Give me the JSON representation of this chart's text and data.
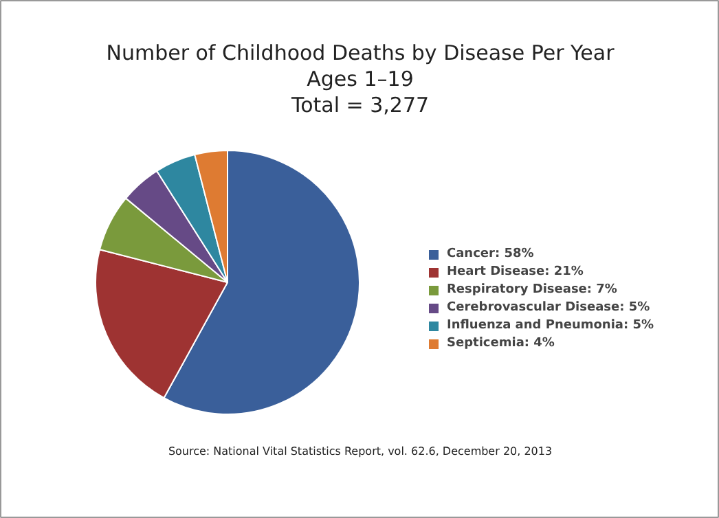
{
  "chart_data": {
    "type": "pie",
    "title": "Number of Childhood Deaths by Disease Per Year",
    "subtitle": "Ages 1–19",
    "categories": [
      "Cancer: 58%",
      "Heart Disease: 21%",
      "Respiratory Disease: 7%",
      "Cerebrovascular Disease: 5%",
      "Influenza and Pneumonia: 5%",
      "Septicemia: 4%"
    ],
    "values": [
      58,
      21,
      7,
      5,
      5,
      4
    ],
    "colors": [
      "#3a5f9a",
      "#9e3332",
      "#7a9a3c",
      "#664a86",
      "#2e87a0",
      "#de7b32"
    ],
    "legend": "right",
    "annotations": [
      "Total = 3,277",
      "Source: National Vital Statistics Report, vol. 62.6, December 20, 2013"
    ]
  }
}
